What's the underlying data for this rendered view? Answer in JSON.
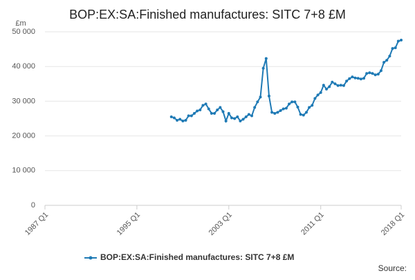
{
  "chart_data": {
    "type": "line",
    "title": "BOP:EX:SA:Finished manufactures: SITC 7+8 £M",
    "ylabel": "£m",
    "source": "Source:",
    "categories": [
      "1987 Q1",
      null,
      null,
      null,
      null,
      null,
      null,
      null,
      null,
      null,
      null,
      null,
      null,
      null,
      null,
      null,
      null,
      null,
      null,
      null,
      null,
      null,
      null,
      null,
      null,
      null,
      null,
      null,
      null,
      null,
      null,
      null,
      "1995 Q1",
      null,
      null,
      null,
      null,
      null,
      null,
      null,
      null,
      null,
      null,
      null,
      null,
      null,
      null,
      null,
      null,
      null,
      null,
      null,
      null,
      null,
      null,
      null,
      null,
      null,
      null,
      null,
      null,
      null,
      null,
      null,
      "2003 Q1",
      null,
      null,
      null,
      null,
      null,
      null,
      null,
      null,
      null,
      null,
      null,
      null,
      null,
      null,
      null,
      null,
      null,
      null,
      null,
      null,
      null,
      null,
      null,
      null,
      null,
      null,
      null,
      null,
      null,
      null,
      null,
      "2011 Q1",
      null,
      null,
      null,
      null,
      null,
      null,
      null,
      null,
      null,
      null,
      null,
      null,
      null,
      null,
      null,
      null,
      null,
      null,
      null,
      null,
      null,
      null,
      null,
      null,
      null,
      null,
      null,
      "2018 Q1"
    ],
    "series": [
      {
        "name": "BOP:EX:SA:Finished manufactures: SITC 7+8 £M",
        "color": "#1f7ab5",
        "values": [
          null,
          null,
          null,
          null,
          null,
          null,
          null,
          null,
          null,
          null,
          null,
          null,
          null,
          null,
          null,
          null,
          null,
          null,
          null,
          null,
          null,
          null,
          null,
          null,
          null,
          null,
          null,
          null,
          null,
          null,
          null,
          null,
          null,
          null,
          null,
          null,
          null,
          null,
          null,
          null,
          null,
          null,
          null,
          null,
          25500,
          25200,
          24500,
          24800,
          24300,
          24500,
          25800,
          25800,
          26500,
          27200,
          27500,
          28800,
          29200,
          27800,
          26500,
          26500,
          27500,
          28200,
          27000,
          24300,
          26500,
          25200,
          25000,
          25500,
          24300,
          24800,
          25500,
          26200,
          25800,
          28200,
          29800,
          31200,
          39500,
          42300,
          31500,
          26800,
          26500,
          26800,
          27300,
          27800,
          28000,
          29200,
          29800,
          29800,
          28300,
          26200,
          26000,
          26800,
          28200,
          28800,
          30800,
          31800,
          32500,
          34600,
          33500,
          34200,
          35500,
          35000,
          34500,
          34600,
          34500,
          35800,
          36500,
          37000,
          36700,
          36600,
          36400,
          36600,
          38000,
          38200,
          38000,
          37600,
          37800,
          38800,
          41200,
          41800,
          43000,
          45200,
          45400,
          47300,
          47600
        ]
      }
    ],
    "ylim": [
      0,
      50000
    ],
    "yticks": [
      0,
      {
        "value": 10000,
        "label": "10 000"
      },
      {
        "value": 20000,
        "label": "20 000"
      },
      {
        "value": 30000,
        "label": "30 000"
      },
      {
        "value": 40000,
        "label": "40 000"
      },
      {
        "value": 50000,
        "label": "50 000"
      }
    ],
    "grid": true
  }
}
